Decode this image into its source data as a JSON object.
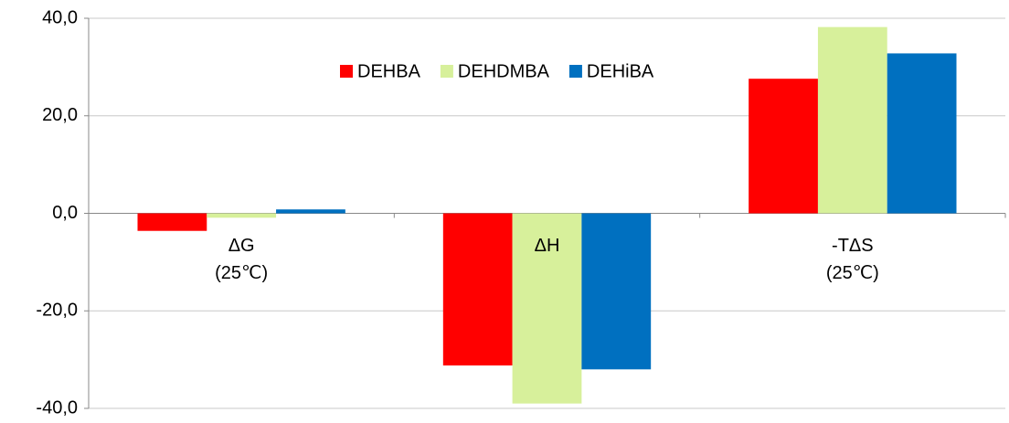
{
  "chart_data": {
    "type": "bar",
    "categories": [
      "ΔG\n(25℃)",
      "ΔH",
      "-TΔS\n(25℃)"
    ],
    "series": [
      {
        "name": "DEHBA",
        "color": "#ff0000",
        "values": [
          -3.6,
          -31.2,
          27.6
        ]
      },
      {
        "name": "DEHDMBA",
        "color": "#d7f09b",
        "values": [
          -0.9,
          -39.0,
          38.2
        ]
      },
      {
        "name": "DEHiBA",
        "color": "#0070c0",
        "values": [
          0.8,
          -32.0,
          32.8
        ]
      }
    ],
    "ylim": [
      -40,
      40
    ],
    "yticks": [
      {
        "value": -40,
        "label": "-40,0"
      },
      {
        "value": -20,
        "label": "-20,0"
      },
      {
        "value": 0,
        "label": "0,0"
      },
      {
        "value": 20,
        "label": "20,0"
      },
      {
        "value": 40,
        "label": "40,0"
      }
    ],
    "grid": true,
    "legend": "top"
  }
}
